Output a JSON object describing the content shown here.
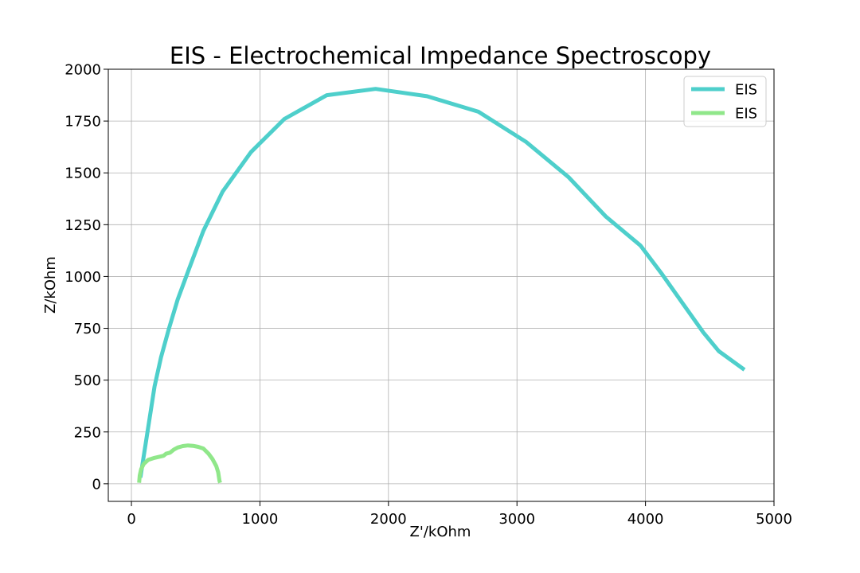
{
  "chart_data": {
    "type": "line",
    "title": "EIS - Electrochemical Impedance Spectroscopy",
    "xlabel": "Z'/kOhm",
    "ylabel": "Z/kOhm",
    "xlim": [
      -180,
      5000
    ],
    "ylim": [
      -85,
      2000
    ],
    "xticks": [
      0,
      1000,
      2000,
      3000,
      4000,
      5000
    ],
    "yticks": [
      0,
      250,
      500,
      750,
      1000,
      1250,
      1500,
      1750,
      2000
    ],
    "grid": true,
    "legend_position": "top-right",
    "series": [
      {
        "name": "EIS",
        "color": "#4ecfcb",
        "x": [
          70,
          120,
          180,
          230,
          290,
          360,
          450,
          560,
          710,
          930,
          1190,
          1520,
          1900,
          2300,
          2700,
          3070,
          3400,
          3690,
          3960,
          4130,
          4290,
          4450,
          4570,
          4770
        ],
        "y": [
          30,
          230,
          470,
          610,
          745,
          890,
          1040,
          1220,
          1410,
          1600,
          1760,
          1875,
          1905,
          1870,
          1795,
          1650,
          1480,
          1290,
          1150,
          1010,
          870,
          730,
          640,
          550
        ]
      },
      {
        "name": "EIS",
        "color": "#90e78a",
        "x": [
          60,
          65,
          75,
          95,
          130,
          180,
          250,
          270,
          300,
          330,
          360,
          400,
          440,
          480,
          520,
          560,
          600,
          630,
          660,
          675,
          680,
          685,
          690
        ],
        "y": [
          5,
          40,
          70,
          95,
          115,
          125,
          135,
          145,
          150,
          165,
          175,
          182,
          185,
          183,
          178,
          170,
          145,
          120,
          85,
          55,
          35,
          15,
          5
        ]
      }
    ]
  }
}
